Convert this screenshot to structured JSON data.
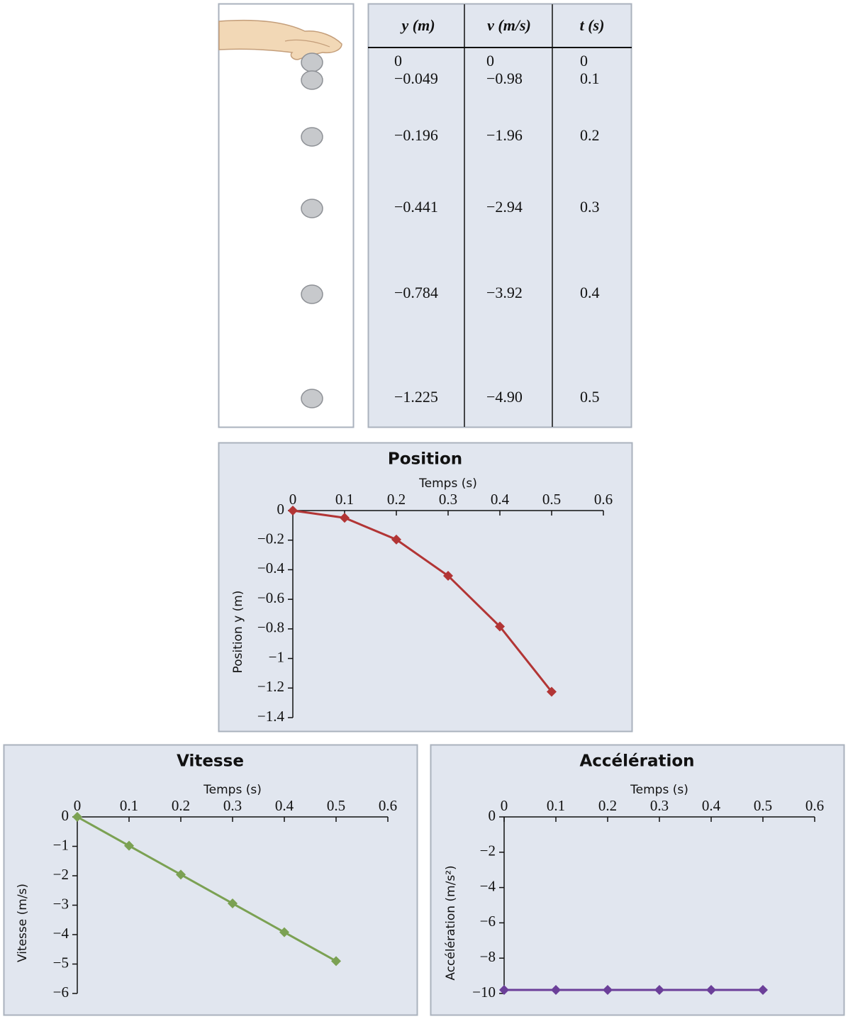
{
  "table": {
    "header": [
      "y (m)",
      "v (m/s)",
      "t (s)"
    ],
    "rows": [
      [
        "0",
        "0",
        "0"
      ],
      [
        "−0.049",
        "−0.98",
        "0.1"
      ],
      [
        "−0.196",
        "−1.96",
        "0.2"
      ],
      [
        "−0.441",
        "−2.94",
        "0.3"
      ],
      [
        "−0.784",
        "−3.92",
        "0.4"
      ],
      [
        "−1.225",
        "−4.90",
        "0.5"
      ]
    ]
  },
  "chart_data": [
    {
      "type": "line",
      "title": "Position",
      "x_label": "Temps (s)",
      "y_label": "Position y (m)",
      "x": [
        0,
        0.1,
        0.2,
        0.3,
        0.4,
        0.5
      ],
      "values": [
        0,
        -0.049,
        -0.196,
        -0.441,
        -0.784,
        -1.225
      ],
      "color": "#b23535",
      "xlim": [
        0,
        0.6
      ],
      "xticks": [
        0,
        0.1,
        0.2,
        0.3,
        0.4,
        0.5,
        0.6
      ],
      "ylim": [
        -1.4,
        0
      ],
      "yticks": [
        0,
        {
          "value": -0.2,
          "label": "−0.2"
        },
        {
          "value": -0.4,
          "label": "−0.4"
        },
        {
          "value": -0.6,
          "label": "−0.6"
        },
        {
          "value": -0.8,
          "label": "−0.8"
        },
        {
          "value": -1,
          "label": "−1"
        },
        {
          "value": -1.2,
          "label": "−1.2"
        },
        {
          "value": -1.4,
          "label": "−1.4"
        }
      ]
    },
    {
      "type": "line",
      "title": "Vitesse",
      "x_label": "Temps (s)",
      "y_label": "Vitesse (m/s)",
      "x": [
        0,
        0.1,
        0.2,
        0.3,
        0.4,
        0.5
      ],
      "values": [
        0,
        -0.98,
        -1.96,
        -2.94,
        -3.92,
        -4.9
      ],
      "color": "#7ba153",
      "xlim": [
        0,
        0.6
      ],
      "xticks": [
        0,
        0.1,
        0.2,
        0.3,
        0.4,
        0.5,
        0.6
      ],
      "ylim": [
        -6,
        0
      ],
      "yticks": [
        0,
        {
          "value": -1,
          "label": "−1"
        },
        {
          "value": -2,
          "label": "−2"
        },
        {
          "value": -3,
          "label": "−3"
        },
        {
          "value": -4,
          "label": "−4"
        },
        {
          "value": -5,
          "label": "−5"
        },
        {
          "value": -6,
          "label": "−6"
        }
      ]
    },
    {
      "type": "line",
      "title": "Accélération",
      "x_label": "Temps (s)",
      "y_label": "Accélération (m/s²)",
      "x": [
        0,
        0.1,
        0.2,
        0.3,
        0.4,
        0.5
      ],
      "values": [
        -9.8,
        -9.8,
        -9.8,
        -9.8,
        -9.8,
        -9.8
      ],
      "color": "#6b3f99",
      "xlim": [
        0,
        0.6
      ],
      "xticks": [
        0,
        0.1,
        0.2,
        0.3,
        0.4,
        0.5,
        0.6
      ],
      "ylim": [
        -10,
        0
      ],
      "yticks": [
        0,
        {
          "value": -2,
          "label": "−2"
        },
        {
          "value": -4,
          "label": "−4"
        },
        {
          "value": -6,
          "label": "−6"
        },
        {
          "value": -8,
          "label": "−8"
        },
        {
          "value": -10,
          "label": "−10"
        }
      ]
    }
  ]
}
